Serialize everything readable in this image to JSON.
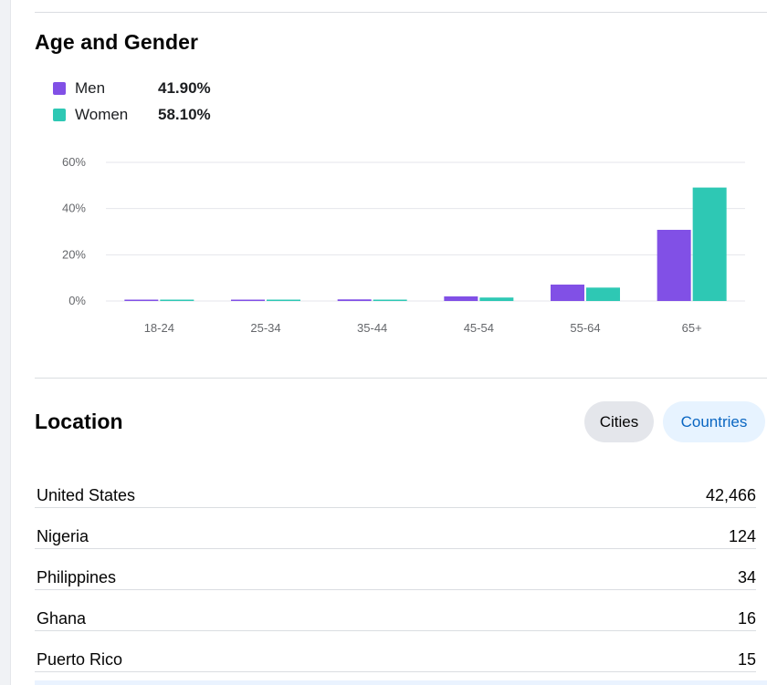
{
  "age_gender": {
    "title": "Age and Gender",
    "legend": [
      {
        "label": "Men",
        "value": "41.90%",
        "color": "#8150e6"
      },
      {
        "label": "Women",
        "value": "58.10%",
        "color": "#2ec8b4"
      }
    ]
  },
  "chart_data": {
    "type": "bar",
    "title": "",
    "xlabel": "",
    "ylabel": "",
    "categories": [
      "18-24",
      "25-34",
      "35-44",
      "45-54",
      "55-64",
      "65+"
    ],
    "series": [
      {
        "name": "Men",
        "color": "#8150e6",
        "values": [
          0.3,
          0.3,
          0.7,
          2.0,
          7.1,
          30.8
        ]
      },
      {
        "name": "Women",
        "color": "#2ec8b4",
        "values": [
          0.3,
          0.3,
          0.5,
          1.5,
          5.8,
          49.1
        ]
      }
    ],
    "ylim": [
      0,
      60
    ],
    "yticks": [
      0,
      20,
      40,
      60
    ],
    "ytick_labels": [
      "0%",
      "20%",
      "40%",
      "60%"
    ],
    "grid": true
  },
  "location": {
    "title": "Location",
    "tabs": {
      "cities": "Cities",
      "countries": "Countries"
    },
    "rows": [
      {
        "name": "United States",
        "count": "42,466"
      },
      {
        "name": "Nigeria",
        "count": "124"
      },
      {
        "name": "Philippines",
        "count": "34"
      },
      {
        "name": "Ghana",
        "count": "16"
      },
      {
        "name": "Puerto Rico",
        "count": "15"
      }
    ]
  }
}
